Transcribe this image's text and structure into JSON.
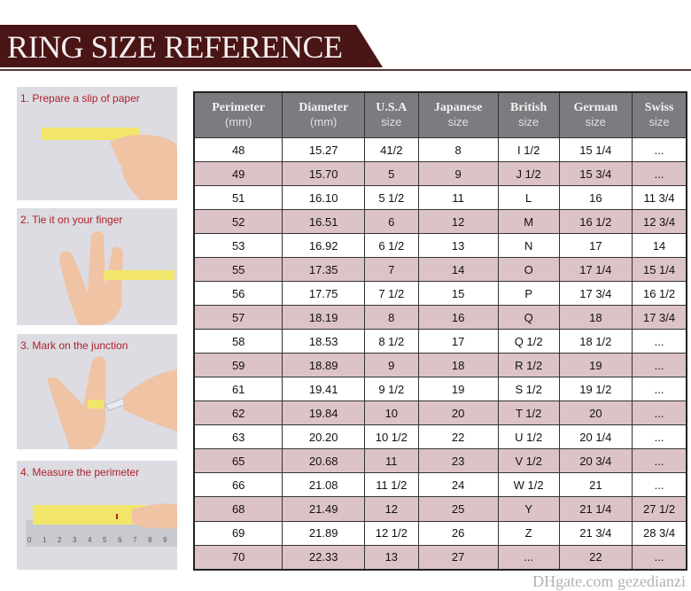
{
  "banner": {
    "title": "RING SIZE REFERENCE",
    "color": "#4a1515"
  },
  "steps": [
    {
      "label": "1. Prepare a slip of paper"
    },
    {
      "label": "2. Tie it on your finger"
    },
    {
      "label": "3. Mark on the junction"
    },
    {
      "label": "4. Measure the perimeter",
      "ruler_ticks": [
        "0",
        "1",
        "2",
        "3",
        "4",
        "5",
        "6",
        "7",
        "8",
        "9"
      ]
    }
  ],
  "table": {
    "header_color": "#7b7b80",
    "alt_row_color": "#dcc3c7",
    "columns": [
      {
        "title": "Perimeter",
        "sub": "(mm)"
      },
      {
        "title": "Diameter",
        "sub": "(mm)"
      },
      {
        "title": "U.S.A",
        "sub": "size"
      },
      {
        "title": "Japanese",
        "sub": "size"
      },
      {
        "title": "British",
        "sub": "size"
      },
      {
        "title": "German",
        "sub": "size"
      },
      {
        "title": "Swiss",
        "sub": "size"
      }
    ],
    "rows": [
      [
        "48",
        "15.27",
        "41/2",
        "8",
        "I 1/2",
        "15 1/4",
        "..."
      ],
      [
        "49",
        "15.70",
        "5",
        "9",
        "J 1/2",
        "15 3/4",
        "..."
      ],
      [
        "51",
        "16.10",
        "5 1/2",
        "11",
        "L",
        "16",
        "11 3/4"
      ],
      [
        "52",
        "16.51",
        "6",
        "12",
        "M",
        "16 1/2",
        "12 3/4"
      ],
      [
        "53",
        "16.92",
        "6 1/2",
        "13",
        "N",
        "17",
        "14"
      ],
      [
        "55",
        "17.35",
        "7",
        "14",
        "O",
        "17 1/4",
        "15 1/4"
      ],
      [
        "56",
        "17.75",
        "7 1/2",
        "15",
        "P",
        "17 3/4",
        "16 1/2"
      ],
      [
        "57",
        "18.19",
        "8",
        "16",
        "Q",
        "18",
        "17 3/4"
      ],
      [
        "58",
        "18.53",
        "8 1/2",
        "17",
        "Q  1/2",
        "18 1/2",
        "..."
      ],
      [
        "59",
        "18.89",
        "9",
        "18",
        "R 1/2",
        "19",
        "..."
      ],
      [
        "61",
        "19.41",
        "9 1/2",
        "19",
        "S 1/2",
        "19 1/2",
        "..."
      ],
      [
        "62",
        "19.84",
        "10",
        "20",
        "T 1/2",
        "20",
        "..."
      ],
      [
        "63",
        "20.20",
        "10 1/2",
        "22",
        "U 1/2",
        "20 1/4",
        "..."
      ],
      [
        "65",
        "20.68",
        "11",
        "23",
        "V 1/2",
        "20 3/4",
        "..."
      ],
      [
        "66",
        "21.08",
        "11 1/2",
        "24",
        "W 1/2",
        "21",
        "..."
      ],
      [
        "68",
        "21.49",
        "12",
        "25",
        "Y",
        "21 1/4",
        "27 1/2"
      ],
      [
        "69",
        "21.89",
        "12 1/2",
        "26",
        "Z",
        "21 3/4",
        "28 3/4"
      ],
      [
        "70",
        "22.33",
        "13",
        "27",
        "...",
        "22",
        "..."
      ]
    ]
  },
  "watermark": "DHgate.com  gezedianzi"
}
